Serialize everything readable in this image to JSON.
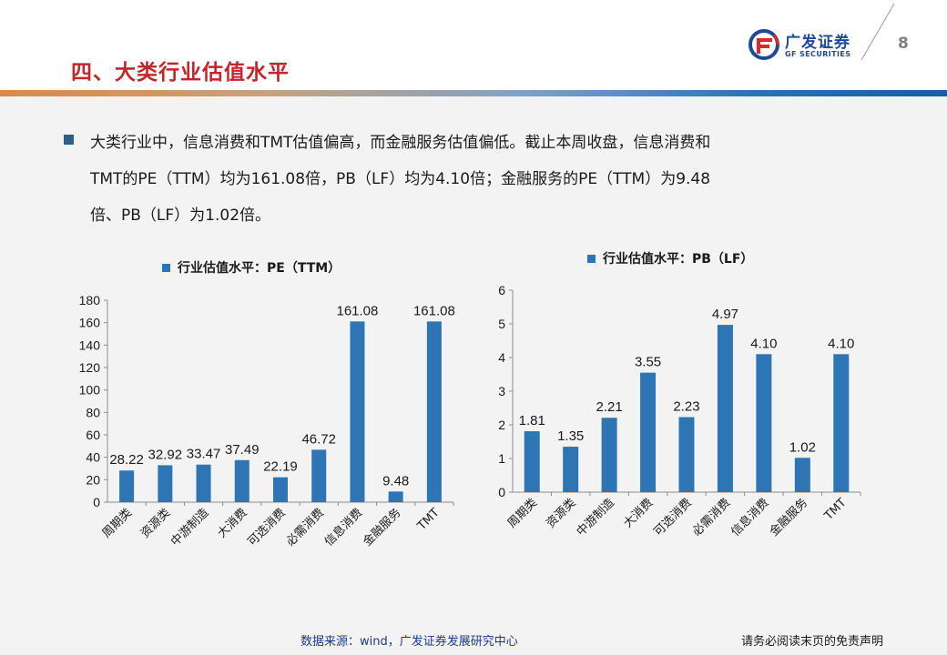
{
  "header": {
    "title": "四、大类行业估值水平",
    "logo_cn": "广发证券",
    "logo_en": "GF SECURITIES",
    "page_number": "8"
  },
  "summary": {
    "lines": [
      "大类行业中，信息消费和TMT估值偏高，而金融服务估值偏低。截止本周收盘，信息消费和",
      "TMT的PE（TTM）均为161.08倍，PB（LF）均为4.10倍；金融服务的PE（TTM）为9.48",
      "倍、PB（LF）为1.02倍。"
    ]
  },
  "chart_data": [
    {
      "type": "bar",
      "legend": "行业估值水平：PE（TTM）",
      "legend_position": "top",
      "categories": [
        "周期类",
        "资源类",
        "中游制造",
        "大消费",
        "可选消费",
        "必需消费",
        "信息消费",
        "金融服务",
        "TMT"
      ],
      "values": [
        28.22,
        32.92,
        33.47,
        37.49,
        22.19,
        46.72,
        161.08,
        9.48,
        161.08
      ],
      "value_labels": [
        "28.22",
        "32.92",
        "33.47",
        "37.49",
        "22.19",
        "46.72",
        "161.08",
        "9.48",
        "161.08"
      ],
      "ylim": [
        0,
        180
      ],
      "yticks": [
        0,
        20,
        40,
        60,
        80,
        100,
        120,
        140,
        160,
        180
      ],
      "bar_color": "#2e75b6",
      "grid": false
    },
    {
      "type": "bar",
      "legend": "行业估值水平：PB（LF）",
      "legend_position": "top",
      "categories": [
        "周期类",
        "资源类",
        "中游制造",
        "大消费",
        "可选消费",
        "必需消费",
        "信息消费",
        "金融服务",
        "TMT"
      ],
      "values": [
        1.81,
        1.35,
        2.21,
        3.55,
        2.23,
        4.97,
        4.1,
        1.02,
        4.1
      ],
      "value_labels": [
        "1.81",
        "1.35",
        "2.21",
        "3.55",
        "2.23",
        "4.97",
        "4.10",
        "1.02",
        "4.10"
      ],
      "ylim": [
        0,
        6
      ],
      "yticks": [
        0,
        1,
        2,
        3,
        4,
        5,
        6
      ],
      "bar_color": "#2e75b6",
      "grid": false
    }
  ],
  "footer": {
    "source": "数据来源：wind，广发证券发展研究中心",
    "disclaimer": "请务必阅读末页的免责声明"
  },
  "colors": {
    "title": "#c0272d",
    "brand_blue": "#1b4a99",
    "bar": "#2e75b6",
    "bullet": "#2e5d8f",
    "background": "#f3f3f3"
  }
}
